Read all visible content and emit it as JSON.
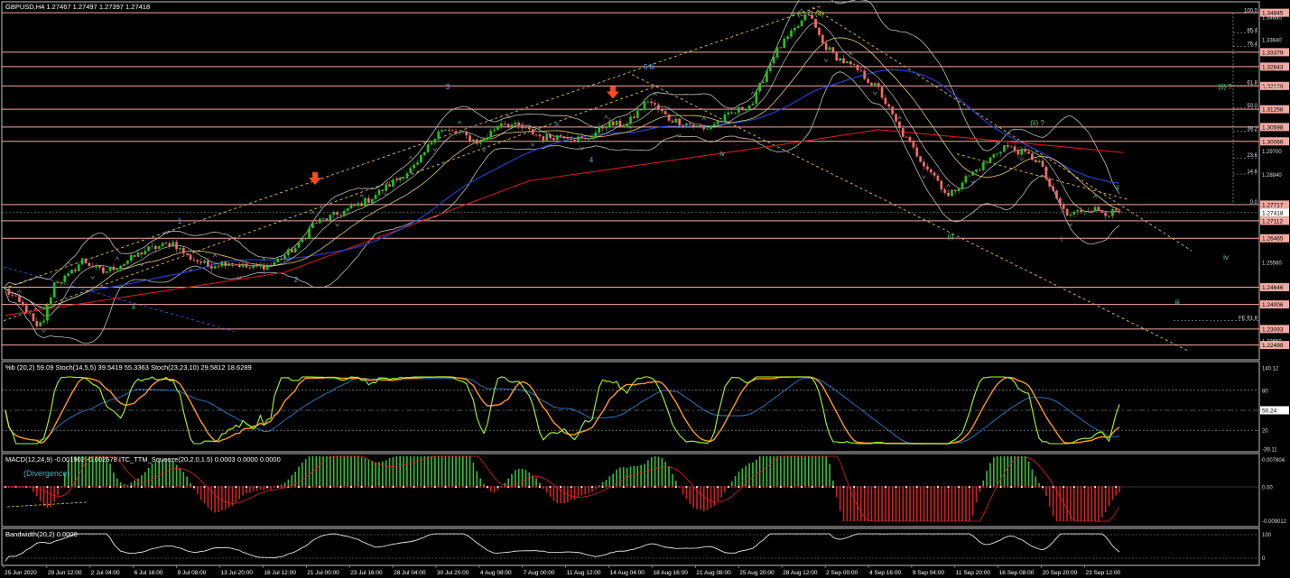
{
  "header": {
    "main": "GBPUSD,H4  1.27467 1.27497 1.27397 1.27418",
    "ind1": "%b (20,2) 59.09  Stoch(14,5,5) 39.5419 55.3363  Stoch(23,23,10) 29.5812 18.6289",
    "ind2": "MACD(12,24,9) -0.001902 -0.002578  ITC_TTM_Squeeze(20,2.0,1.5) 0.0003 0.0000 0.0000",
    "ind3": "Bandwidth(20,2) 0.0000"
  },
  "colors": {
    "background": "#000000",
    "bull_candle": "#22c21a",
    "bear_candle": "#f46a6a",
    "level_line": "#f4a9a0",
    "ma_red": "#d21a1a",
    "ma_blue": "#2244dd",
    "band": "#bdbdbd",
    "channel": "#e6c04a",
    "stoch_green": "#a6ff1a",
    "stoch_orange": "#ff9a1a",
    "macd_green": "#34c234",
    "macd_red": "#d42020",
    "wave_blue": "#59a9ff",
    "wave_green": "#59d17a",
    "arrow": "#ff4a1a"
  },
  "price_levels": [
    "1.34845",
    "1.33379",
    "1.32843",
    "1.32126",
    "1.31258",
    "1.30598",
    "1.30066",
    "1.27717",
    "1.27418",
    "1.27112",
    "1.26465",
    "1.24646",
    "1.24006",
    "1.23093",
    "1.22499"
  ],
  "axis_prices": [
    "1.34680",
    "1.33840",
    "1.32060",
    "1.29700",
    "1.28840",
    "1.25560",
    "1.22650"
  ],
  "fib_labels": [
    "100.0",
    "85.4",
    "76.4",
    "61.8",
    "50.0",
    "38.2",
    "23.6",
    "14.6",
    "0.0",
    "FE 61.8"
  ],
  "wave_labels": {
    "top": "v (c) C (4)",
    "w1": "1",
    "w2": "2",
    "w3": "3",
    "w4": "4",
    "w5": "5 iii",
    "i": "i",
    "ii": "ii",
    "iv": "iv",
    "i_low": "(i)",
    "ii_q": "(ii) ?",
    "ii_q2": "(ii) ?",
    "i_small": "i",
    "ii_small": "ii",
    "iv_proj": "iv",
    "iii_proj": "iii"
  },
  "panel1_scale": [
    "140.12",
    "80",
    "50.24",
    "20",
    "-39.11"
  ],
  "panel2_scale": [
    "0.007804",
    "0.00",
    "-0.009012"
  ],
  "panel2_note": "(Divergence)",
  "panel3_scale": [
    "100",
    "0"
  ],
  "time_labels": [
    "25 Jun 2020",
    "29 Jun 12:00",
    "2 Jul 04:00",
    "6 Jul 16:00",
    "9 Jul 08:00",
    "13 Jul 20:00",
    "16 Jul 12:00",
    "21 Jul 00:00",
    "23 Jul 16:00",
    "28 Jul 04:00",
    "30 Jul 20:00",
    "4 Aug 08:00",
    "7 Aug 00:00",
    "11 Aug 12:00",
    "14 Aug 04:00",
    "18 Aug 16:00",
    "21 Aug 08:00",
    "25 Aug 20:00",
    "28 Aug 12:00",
    "2 Sep 00:00",
    "4 Sep 16:00",
    "9 Sep 04:00",
    "11 Sep 20:00",
    "16 Sep 08:00",
    "20 Sep 20:00",
    "23 Sep 12:00"
  ],
  "chart_data": {
    "type": "candlestick",
    "symbol": "GBPUSD",
    "timeframe": "H4",
    "ylim": [
      1.2205,
      1.3505
    ],
    "last_price": 1.27418,
    "close_path": [
      [
        0,
        1.2455
      ],
      [
        6,
        1.238
      ],
      [
        9,
        1.231
      ],
      [
        11,
        1.2345
      ],
      [
        14,
        1.248
      ],
      [
        18,
        1.2505
      ],
      [
        22,
        1.2565
      ],
      [
        28,
        1.252
      ],
      [
        34,
        1.2555
      ],
      [
        40,
        1.2602
      ],
      [
        48,
        1.263
      ],
      [
        52,
        1.258
      ],
      [
        58,
        1.2545
      ],
      [
        64,
        1.256
      ],
      [
        70,
        1.2535
      ],
      [
        76,
        1.2548
      ],
      [
        84,
        1.262
      ],
      [
        88,
        1.27
      ],
      [
        96,
        1.274
      ],
      [
        104,
        1.279
      ],
      [
        112,
        1.2865
      ],
      [
        118,
        1.292
      ],
      [
        124,
        1.305
      ],
      [
        130,
        1.3035
      ],
      [
        136,
        1.3
      ],
      [
        142,
        1.308
      ],
      [
        148,
        1.3055
      ],
      [
        154,
        1.302
      ],
      [
        160,
        1.303
      ],
      [
        166,
        1.301
      ],
      [
        172,
        1.307
      ],
      [
        178,
        1.307
      ],
      [
        184,
        1.316
      ],
      [
        190,
        1.309
      ],
      [
        196,
        1.307
      ],
      [
        200,
        1.305
      ],
      [
        208,
        1.311
      ],
      [
        214,
        1.315
      ],
      [
        220,
        1.333
      ],
      [
        226,
        1.342
      ],
      [
        230,
        1.3482
      ],
      [
        234,
        1.337
      ],
      [
        238,
        1.332
      ],
      [
        244,
        1.327
      ],
      [
        250,
        1.32
      ],
      [
        256,
        1.305
      ],
      [
        262,
        1.294
      ],
      [
        266,
        1.288
      ],
      [
        270,
        1.28
      ],
      [
        274,
        1.286
      ],
      [
        280,
        1.292
      ],
      [
        286,
        1.299
      ],
      [
        292,
        1.296
      ],
      [
        296,
        1.293
      ],
      [
        300,
        1.281
      ],
      [
        304,
        1.273
      ],
      [
        310,
        1.276
      ],
      [
        316,
        1.274
      ],
      [
        320,
        1.2742
      ]
    ],
    "series": [
      {
        "name": "MA",
        "color": "red",
        "values": [
          [
            0,
            1.236
          ],
          [
            80,
            1.252
          ],
          [
            150,
            1.286
          ],
          [
            220,
            1.299
          ],
          [
            250,
            1.305
          ],
          [
            300,
            1.299
          ],
          [
            320,
            1.2965
          ]
        ]
      }
    ]
  }
}
